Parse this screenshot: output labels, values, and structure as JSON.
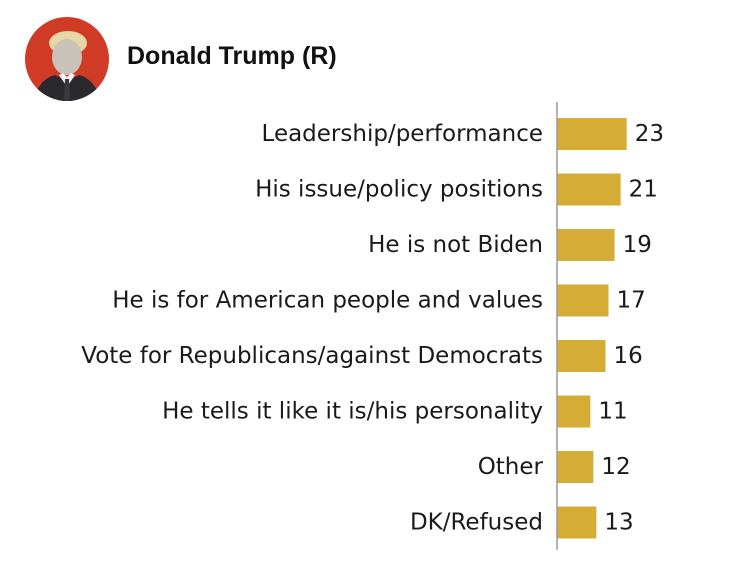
{
  "header": {
    "name": "Donald Trump (R)"
  },
  "colors": {
    "bar": "#d4ac36",
    "axis": "#9a9a9a",
    "avatar_bg": "#cf3b25"
  },
  "chart_data": {
    "type": "bar",
    "orientation": "horizontal",
    "categories": [
      "Leadership/performance",
      "His issue/policy positions",
      "He is not Biden",
      "He is for American people and values",
      "Vote for Republicans/against Democrats",
      "He tells it like it is/his personality",
      "Other",
      "DK/Refused"
    ],
    "values": [
      23,
      21,
      19,
      17,
      16,
      11,
      12,
      13
    ],
    "xlim": [
      0,
      25
    ],
    "grid": false,
    "legend": "none"
  }
}
